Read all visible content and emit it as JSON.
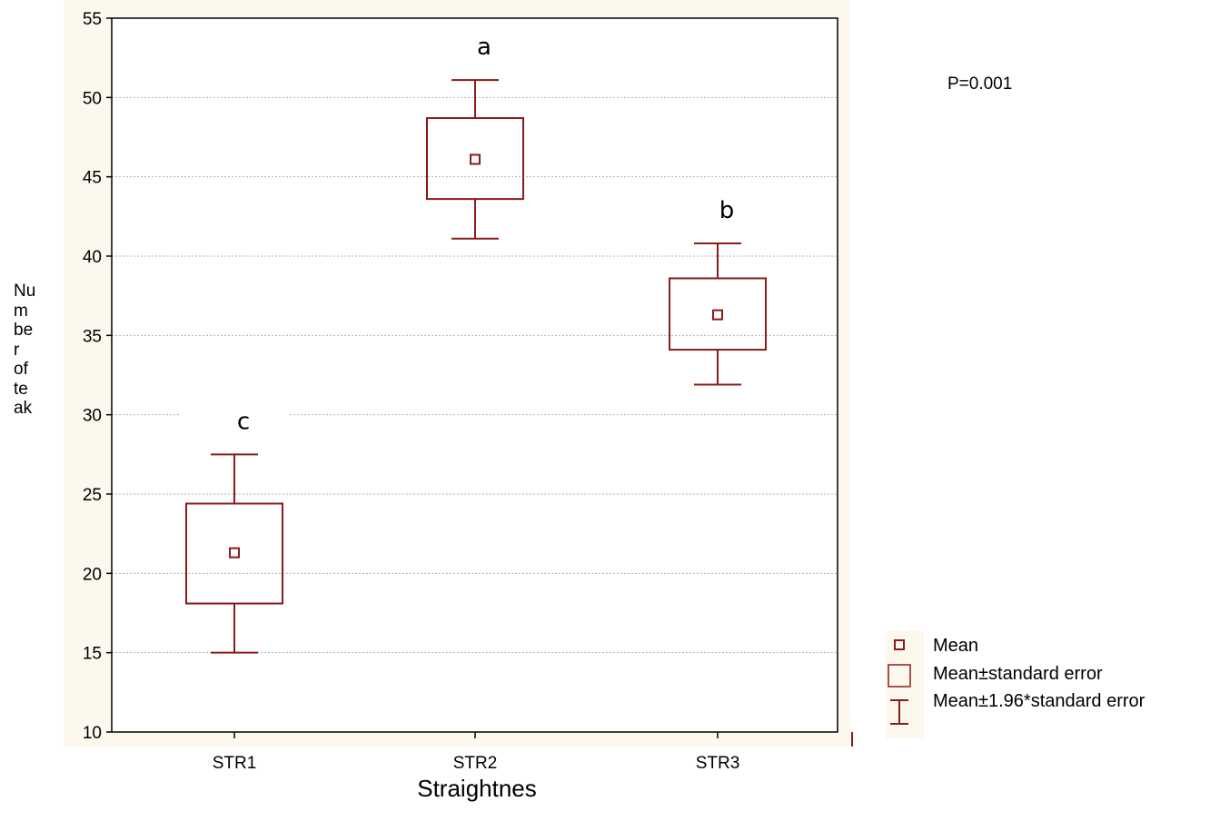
{
  "chart_data": {
    "type": "box",
    "categories": [
      "STR1",
      "STR2",
      "STR3"
    ],
    "xlabel": "Straightnes",
    "ylabel_lines": [
      "Nu",
      "m",
      "be",
      "r",
      "of",
      "te",
      "ak"
    ],
    "ylim": [
      10,
      55
    ],
    "yticks": [
      10,
      15,
      20,
      25,
      30,
      35,
      40,
      45,
      50,
      55
    ],
    "grid": true,
    "series": [
      {
        "stats": [
          {
            "category": "STR1",
            "mean": 21.3,
            "se_low": 18.1,
            "se_high": 24.4,
            "ci_low": 15.0,
            "ci_high": 27.5,
            "letter": "c"
          },
          {
            "category": "STR2",
            "mean": 46.1,
            "se_low": 43.6,
            "se_high": 48.7,
            "ci_low": 41.1,
            "ci_high": 51.1,
            "letter": "a"
          },
          {
            "category": "STR3",
            "mean": 36.3,
            "se_low": 34.1,
            "se_high": 38.6,
            "ci_low": 31.9,
            "ci_high": 40.8,
            "letter": "b"
          }
        ]
      }
    ],
    "annotation": "P=0.001",
    "legend": {
      "placement": "bottom-right",
      "entries": [
        "Mean",
        "Mean±standard error",
        "Mean±1.96*standard error"
      ]
    },
    "colors": {
      "series": "#8b1a1a",
      "background": "#fdf8ee",
      "grid": "#b0b0b0",
      "axis": "#000000"
    }
  }
}
